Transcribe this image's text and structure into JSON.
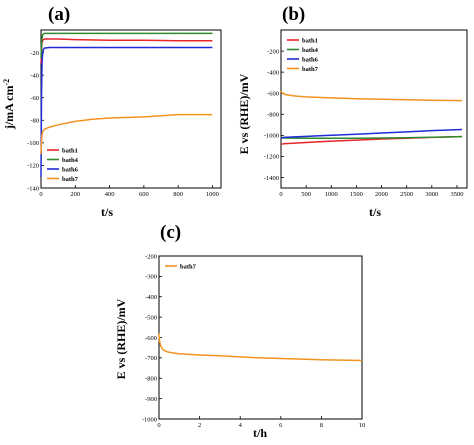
{
  "colors": {
    "bath1": "#e8262c",
    "bath4": "#2d8a2d",
    "bath6": "#1f2bd6",
    "bath7": "#f39220"
  },
  "chart_data": [
    {
      "id": "a",
      "panel_label": "(a)",
      "type": "line",
      "xlabel": "t/s",
      "ylabel": "j/mA cm",
      "ylabel_superscript": "-2",
      "xlim": [
        0,
        1050
      ],
      "ylim": [
        -140,
        0
      ],
      "xticks": [
        0,
        200,
        400,
        600,
        800,
        1000
      ],
      "yticks": [
        -20,
        -40,
        -60,
        -80,
        -100,
        -120,
        -140
      ],
      "legend_position": "bottom-left",
      "series": [
        {
          "name": "bath1",
          "color_key": "bath1",
          "x": [
            0,
            5,
            10,
            20,
            50,
            100,
            200,
            400,
            600,
            800,
            1000
          ],
          "y": [
            -30,
            -12,
            -9,
            -8,
            -8,
            -8,
            -8.5,
            -9,
            -9,
            -9.5,
            -9.5
          ]
        },
        {
          "name": "bath4",
          "color_key": "bath4",
          "x": [
            0,
            5,
            10,
            20,
            50,
            100,
            200,
            400,
            600,
            800,
            1000
          ],
          "y": [
            -25,
            -8,
            -4,
            -3,
            -3,
            -3,
            -3,
            -3,
            -3,
            -3,
            -3
          ]
        },
        {
          "name": "bath6",
          "color_key": "bath6",
          "x": [
            0,
            3,
            6,
            10,
            15,
            20,
            50,
            100,
            200,
            400,
            600,
            800,
            1000
          ],
          "y": [
            -130,
            -60,
            -30,
            -20,
            -17,
            -16,
            -15.5,
            -15.5,
            -15.5,
            -15.5,
            -15.5,
            -15.5,
            -15.5
          ]
        },
        {
          "name": "bath7",
          "color_key": "bath7",
          "x": [
            0,
            5,
            10,
            20,
            50,
            100,
            200,
            300,
            400,
            600,
            800,
            1000
          ],
          "y": [
            -110,
            -93,
            -90,
            -88,
            -86,
            -84,
            -81,
            -79,
            -78,
            -77,
            -75,
            -75
          ]
        }
      ]
    },
    {
      "id": "b",
      "panel_label": "(b)",
      "type": "line",
      "xlabel": "t/s",
      "ylabel": "E vs (RHE)/mV",
      "xlim": [
        0,
        3700
      ],
      "ylim": [
        -1500,
        0
      ],
      "xticks": [
        0,
        500,
        1000,
        1500,
        2000,
        2500,
        3000,
        3500
      ],
      "yticks": [
        -200,
        -400,
        -600,
        -800,
        -1000,
        -1200,
        -1400
      ],
      "legend_position": "top-left",
      "series": [
        {
          "name": "bath1",
          "color_key": "bath1",
          "x": [
            0,
            50,
            500,
            1000,
            1500,
            2000,
            2500,
            3000,
            3600
          ],
          "y": [
            -1085,
            -1080,
            -1068,
            -1055,
            -1045,
            -1035,
            -1027,
            -1020,
            -1012
          ]
        },
        {
          "name": "bath4",
          "color_key": "bath4",
          "x": [
            0,
            50,
            500,
            1000,
            1500,
            2000,
            2500,
            3000,
            3600
          ],
          "y": [
            -1015,
            -1025,
            -1028,
            -1028,
            -1027,
            -1025,
            -1022,
            -1018,
            -1012
          ]
        },
        {
          "name": "bath6",
          "color_key": "bath6",
          "x": [
            0,
            50,
            500,
            1000,
            1500,
            2000,
            2500,
            3000,
            3600
          ],
          "y": [
            -1030,
            -1020,
            -1010,
            -1000,
            -990,
            -978,
            -967,
            -955,
            -945
          ]
        },
        {
          "name": "bath7",
          "color_key": "bath7",
          "x": [
            0,
            30,
            100,
            300,
            500,
            1000,
            1500,
            2000,
            2500,
            3000,
            3600
          ],
          "y": [
            -580,
            -600,
            -615,
            -628,
            -635,
            -645,
            -652,
            -658,
            -663,
            -667,
            -670
          ]
        }
      ]
    },
    {
      "id": "c",
      "panel_label": "(c)",
      "type": "line",
      "xlabel": "t/h",
      "ylabel": "E vs (RHE)/mV",
      "xlim": [
        0,
        10
      ],
      "ylim": [
        -1000,
        -200
      ],
      "xticks": [
        0,
        2,
        4,
        6,
        8,
        10
      ],
      "yticks": [
        -200,
        -300,
        -400,
        -500,
        -600,
        -700,
        -800,
        -900,
        -1000
      ],
      "legend_position": "top-left",
      "series": [
        {
          "name": "bath7",
          "color_key": "bath7",
          "x": [
            0,
            0.03,
            0.1,
            0.2,
            0.4,
            0.7,
            1,
            1.5,
            2,
            3,
            4,
            5,
            6,
            7,
            8,
            9,
            10
          ],
          "y": [
            -580,
            -620,
            -645,
            -660,
            -670,
            -676,
            -680,
            -683,
            -686,
            -690,
            -695,
            -700,
            -703,
            -706,
            -709,
            -711,
            -713
          ]
        }
      ]
    }
  ]
}
